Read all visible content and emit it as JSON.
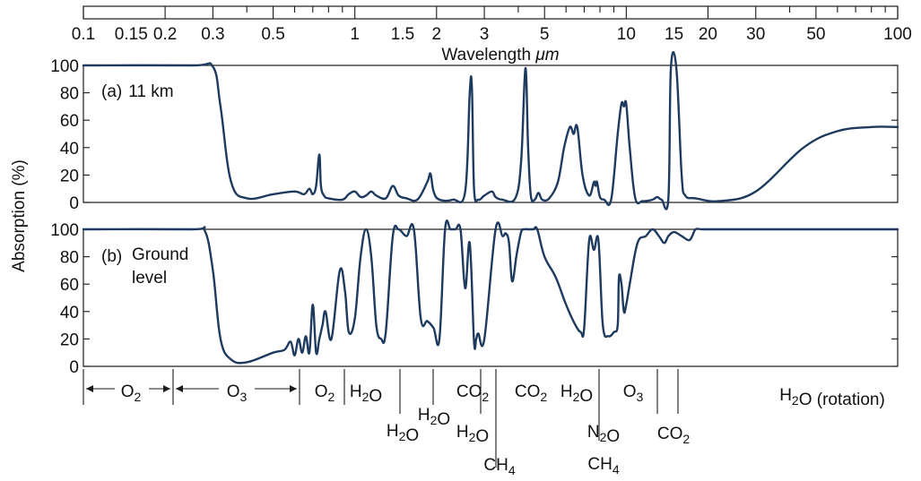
{
  "chart_data": {
    "type": "line",
    "x_scale": "log",
    "xlim": [
      0.1,
      100
    ],
    "ylim": [
      0,
      100
    ],
    "grid": false,
    "top_axis": {
      "label_prefix": "Wavelength ",
      "label_unit": "μm",
      "tick_labels": [
        "0.1",
        "0.15",
        "0.2",
        "0.3",
        "0.5",
        "1",
        "1.5",
        "2",
        "3",
        "5",
        "10",
        "15",
        "20",
        "30",
        "50",
        "100"
      ],
      "tick_values": [
        0.1,
        0.15,
        0.2,
        0.3,
        0.5,
        1,
        1.5,
        2,
        3,
        5,
        10,
        15,
        20,
        30,
        50,
        100
      ]
    },
    "ylabel": "Absorption (%)",
    "y_tick_labels": [
      "0",
      "20",
      "40",
      "60",
      "80",
      "100"
    ],
    "y_tick_values": [
      0,
      20,
      40,
      60,
      80,
      100
    ],
    "panels": [
      {
        "label_letter": "(a)",
        "label_text": "11 km",
        "x": [
          0.1,
          0.25,
          0.3,
          0.32,
          0.35,
          0.4,
          0.5,
          0.6,
          0.65,
          0.68,
          0.7,
          0.72,
          0.74,
          0.75,
          0.77,
          0.8,
          0.9,
          0.95,
          1.0,
          1.05,
          1.1,
          1.15,
          1.2,
          1.3,
          1.38,
          1.45,
          1.55,
          1.7,
          1.85,
          1.9,
          1.95,
          2.05,
          2.3,
          2.55,
          2.65,
          2.7,
          2.75,
          2.85,
          3.0,
          3.2,
          3.3,
          3.5,
          3.9,
          4.1,
          4.25,
          4.35,
          4.45,
          4.6,
          4.75,
          4.9,
          5.2,
          5.6,
          5.9,
          6.2,
          6.4,
          6.6,
          6.9,
          7.3,
          7.6,
          7.7,
          7.8,
          8.0,
          8.3,
          8.8,
          9.3,
          9.6,
          9.8,
          10.0,
          10.3,
          10.8,
          11.5,
          12.5,
          13.0,
          13.5,
          14.3,
          14.6,
          15.3,
          16.0,
          16.5,
          18,
          22,
          30,
          45,
          60,
          80,
          100
        ],
        "values": [
          100,
          100,
          99,
          70,
          15,
          3,
          6,
          8,
          6,
          10,
          6,
          12,
          35,
          12,
          5,
          3,
          2,
          6,
          8,
          4,
          5,
          8,
          5,
          3,
          12,
          5,
          3,
          2,
          15,
          21,
          8,
          2,
          2,
          8,
          80,
          84,
          10,
          2,
          5,
          8,
          4,
          2,
          3,
          30,
          98,
          40,
          5,
          2,
          7,
          2,
          3,
          15,
          40,
          55,
          50,
          55,
          20,
          5,
          15,
          12,
          15,
          4,
          2,
          2,
          50,
          72,
          70,
          72,
          40,
          3,
          1,
          2,
          4,
          2,
          3,
          98,
          98,
          20,
          5,
          3,
          1,
          8,
          40,
          52,
          55,
          55
        ]
      },
      {
        "label_letter": "(b)",
        "label_line1": "Ground",
        "label_line2": "level",
        "x": [
          0.1,
          0.25,
          0.28,
          0.3,
          0.32,
          0.35,
          0.4,
          0.5,
          0.55,
          0.58,
          0.6,
          0.62,
          0.64,
          0.66,
          0.68,
          0.7,
          0.72,
          0.74,
          0.76,
          0.78,
          0.82,
          0.88,
          0.92,
          0.95,
          1.0,
          1.05,
          1.1,
          1.15,
          1.2,
          1.25,
          1.3,
          1.38,
          1.45,
          1.55,
          1.65,
          1.75,
          1.85,
          1.95,
          2.05,
          2.15,
          2.25,
          2.35,
          2.45,
          2.55,
          2.65,
          2.75,
          2.8,
          2.85,
          3.0,
          3.3,
          3.5,
          3.6,
          3.7,
          3.8,
          3.95,
          4.1,
          4.2,
          4.35,
          4.45,
          4.55,
          4.7,
          5.0,
          5.5,
          6.0,
          6.5,
          6.8,
          7.0,
          7.3,
          7.6,
          7.9,
          8.2,
          8.6,
          9.0,
          9.3,
          9.4,
          9.6,
          9.8,
          10.0,
          10.3,
          11.0,
          11.8,
          12.5,
          13.2,
          13.8,
          14.3,
          15.0,
          16.0,
          17.0,
          17.5,
          18.0,
          19.0,
          21.0,
          25,
          35,
          50,
          70,
          100
        ],
        "values": [
          100,
          100,
          99,
          70,
          20,
          5,
          3,
          10,
          12,
          18,
          8,
          20,
          10,
          22,
          10,
          45,
          10,
          20,
          30,
          40,
          20,
          70,
          55,
          25,
          35,
          80,
          100,
          80,
          30,
          20,
          25,
          95,
          100,
          95,
          100,
          35,
          33,
          28,
          20,
          100,
          100,
          100,
          100,
          57,
          90,
          18,
          20,
          24,
          20,
          100,
          95,
          97,
          90,
          62,
          82,
          98,
          100,
          100,
          100,
          100,
          100,
          80,
          65,
          45,
          30,
          25,
          28,
          92,
          85,
          92,
          30,
          22,
          25,
          30,
          65,
          60,
          40,
          45,
          60,
          90,
          95,
          100,
          95,
          90,
          95,
          98,
          95,
          92,
          95,
          100,
          100,
          100,
          100,
          100,
          100,
          100,
          100
        ]
      }
    ],
    "gas_bands": [
      {
        "parts": [
          [
            "H",
            false
          ],
          [
            "2",
            true
          ],
          [
            "O (rotation)",
            false
          ]
        ],
        "row": 0
      },
      {
        "parts": [
          [
            "O",
            false
          ],
          [
            "2",
            true
          ]
        ],
        "row": 0
      },
      {
        "parts": [
          [
            "O",
            false
          ],
          [
            "3",
            true
          ]
        ],
        "row": 0
      },
      {
        "parts": [
          [
            "O",
            false
          ],
          [
            "2",
            true
          ]
        ],
        "row": 0
      },
      {
        "parts": [
          [
            "H",
            false
          ],
          [
            "2",
            true
          ],
          [
            "O",
            false
          ]
        ],
        "row": 0
      },
      {
        "parts": [
          [
            "H",
            false
          ],
          [
            "2",
            true
          ],
          [
            "O",
            false
          ]
        ],
        "row": 2
      },
      {
        "parts": [
          [
            "H",
            false
          ],
          [
            "2",
            true
          ],
          [
            "O",
            false
          ]
        ],
        "row": 1
      },
      {
        "parts": [
          [
            "CO",
            false
          ],
          [
            "2",
            true
          ]
        ],
        "row": 0
      },
      {
        "parts": [
          [
            "H",
            false
          ],
          [
            "2",
            true
          ],
          [
            "O",
            false
          ]
        ],
        "row": 2
      },
      {
        "parts": [
          [
            "CH",
            false
          ],
          [
            "4",
            true
          ]
        ],
        "row": 3
      },
      {
        "parts": [
          [
            "CO",
            false
          ],
          [
            "2",
            true
          ]
        ],
        "row": 0
      },
      {
        "parts": [
          [
            "H",
            false
          ],
          [
            "2",
            true
          ],
          [
            "O",
            false
          ]
        ],
        "row": 0
      },
      {
        "parts": [
          [
            "N",
            false
          ],
          [
            "2",
            true
          ],
          [
            "O",
            false
          ]
        ],
        "row": 2
      },
      {
        "parts": [
          [
            "CH",
            false
          ],
          [
            "4",
            true
          ]
        ],
        "row": 3
      },
      {
        "parts": [
          [
            "O",
            false
          ],
          [
            "3",
            true
          ]
        ],
        "row": 0
      },
      {
        "parts": [
          [
            "CO",
            false
          ],
          [
            "2",
            true
          ]
        ],
        "row": 2
      }
    ]
  }
}
